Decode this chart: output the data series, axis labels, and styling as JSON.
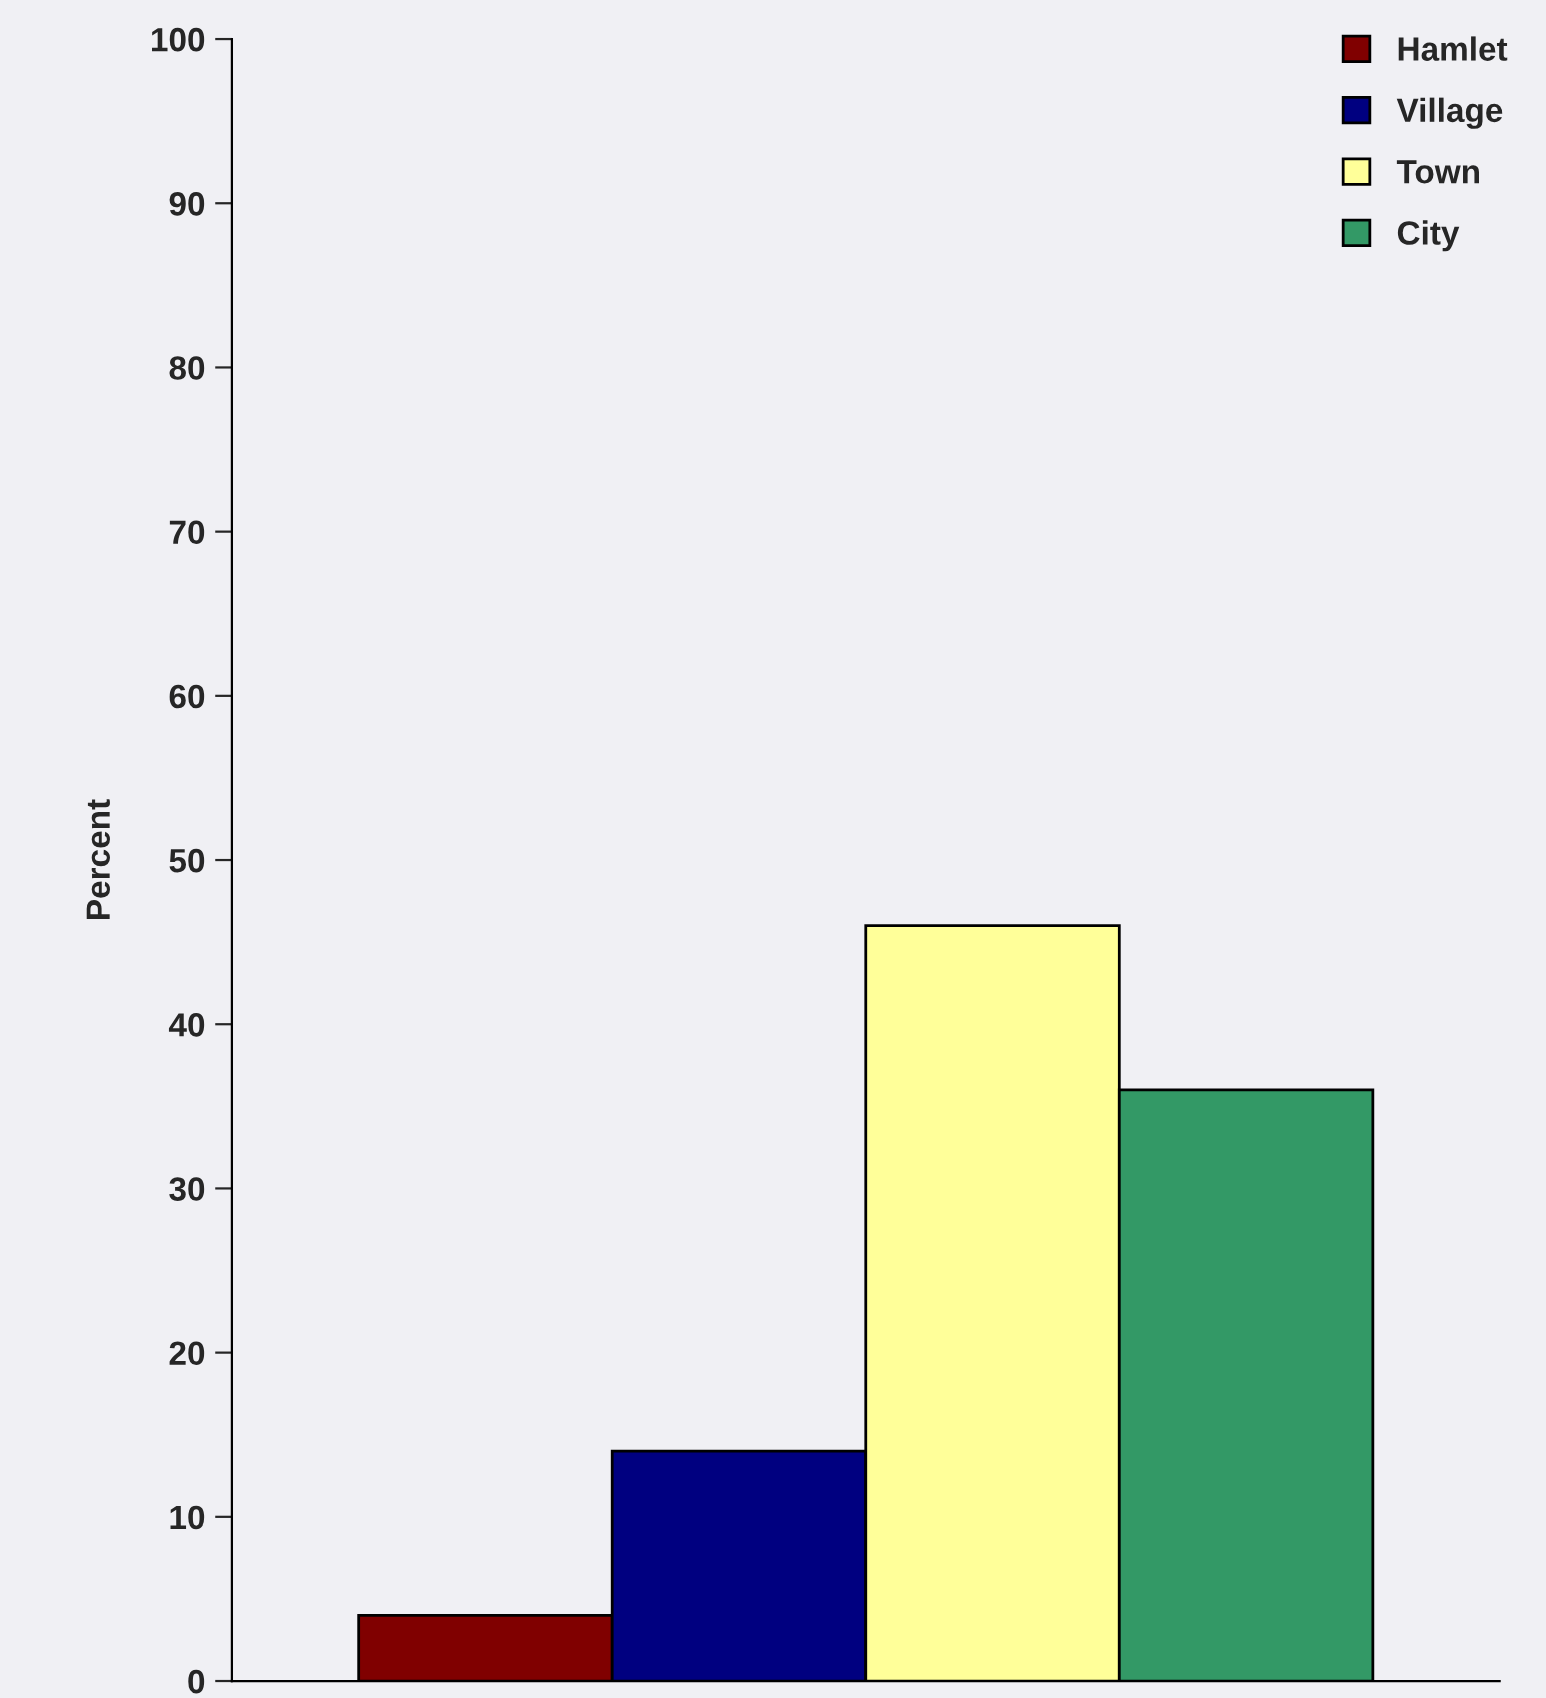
{
  "chart_data": {
    "type": "bar",
    "ylabel": "Percent",
    "categories": [
      null
    ],
    "series": [
      {
        "name": "Hamlet",
        "color": "#800000",
        "values": [
          4
        ]
      },
      {
        "name": "Village",
        "color": "#000080",
        "values": [
          14
        ]
      },
      {
        "name": "Town",
        "color": "#ffff99",
        "values": [
          46
        ]
      },
      {
        "name": "City",
        "color": "#339966",
        "values": [
          36
        ]
      }
    ],
    "ylim": [
      0,
      100
    ],
    "yticks": [
      0,
      10,
      20,
      30,
      40,
      50,
      60,
      70,
      80,
      90,
      100
    ],
    "grid": false,
    "legend": "top right"
  }
}
